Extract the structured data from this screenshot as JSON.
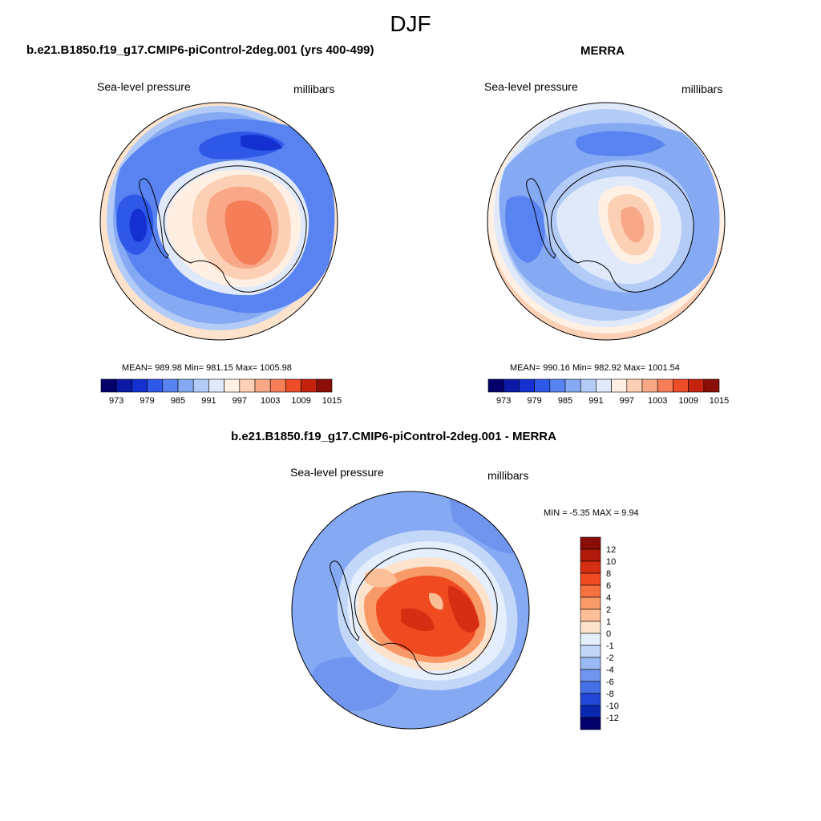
{
  "season": "DJF",
  "variable": "Sea-level pressure",
  "units": "millibars",
  "panels": [
    {
      "title": "b.e21.B1850.f19_g17.CMIP6-piControl-2deg.001 (yrs 400-499)",
      "stats": "MEAN= 989.98  Min= 981.15  Max= 1005.98"
    },
    {
      "title": "MERRA",
      "stats": "MEAN= 990.16  Min= 982.92  Max= 1001.54"
    },
    {
      "title": "b.e21.B1850.f19_g17.CMIP6-piControl-2deg.001 - MERRA",
      "stats": "MIN =  -5.35 MAX =   9.94"
    }
  ],
  "colorbar_abs": {
    "labels": [
      "973",
      "979",
      "985",
      "991",
      "997",
      "1003",
      "1009",
      "1015"
    ],
    "colors": [
      "#03006b",
      "#0a1aa6",
      "#1530d0",
      "#2e58e8",
      "#5883f0",
      "#86a9f3",
      "#b3ccf7",
      "#dfe9fa",
      "#fff0e3",
      "#fcd0b4",
      "#f9a887",
      "#f57d57",
      "#ec4c28",
      "#c4220f",
      "#8a0d06"
    ]
  },
  "colorbar_diff": {
    "labels": [
      "12",
      "10",
      "8",
      "6",
      "4",
      "2",
      "1",
      "0",
      "-1",
      "-2",
      "-4",
      "-6",
      "-8",
      "-10",
      "-12"
    ],
    "colors": [
      "#8a0d06",
      "#b01a0a",
      "#d62e12",
      "#ef4a20",
      "#f5713f",
      "#f89968",
      "#fbbf98",
      "#fde3cc",
      "#e4eefc",
      "#c3d7f8",
      "#9bbaf4",
      "#6f95ee",
      "#4670e6",
      "#2148d8",
      "#0a27b0",
      "#03006b"
    ]
  },
  "chart_data": {
    "type": "heatmap",
    "title": "DJF",
    "projection": "south-polar-stereographic",
    "maps": [
      {
        "name": "b.e21.B1850.f19_g17.CMIP6-piControl-2deg.001 (yrs 400-499)",
        "mean": 989.98,
        "min": 981.15,
        "max": 1005.98,
        "levels": [
          973,
          976,
          979,
          982,
          985,
          988,
          991,
          994,
          997,
          1000,
          1003,
          1006,
          1009,
          1012,
          1015
        ]
      },
      {
        "name": "MERRA",
        "mean": 990.16,
        "min": 982.92,
        "max": 1001.54,
        "levels": [
          973,
          976,
          979,
          982,
          985,
          988,
          991,
          994,
          997,
          1000,
          1003,
          1006,
          1009,
          1012,
          1015
        ]
      },
      {
        "name": "b.e21.B1850.f19_g17.CMIP6-piControl-2deg.001 - MERRA",
        "min": -5.35,
        "max": 9.94,
        "levels": [
          -12,
          -10,
          -8,
          -6,
          -4,
          -2,
          -1,
          0,
          1,
          2,
          4,
          6,
          8,
          10,
          12
        ]
      }
    ]
  }
}
